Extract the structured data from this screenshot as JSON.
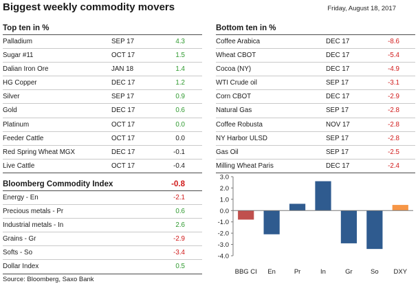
{
  "header": {
    "title": "Biggest weekly commodity movers",
    "date": "Friday, August 18, 2017"
  },
  "top": {
    "title": "Top ten in %",
    "rows": [
      {
        "name": "Palladium",
        "month": "SEP 17",
        "value": "4.3",
        "sign": "pos"
      },
      {
        "name": "Sugar #11",
        "month": "OCT 17",
        "value": "1.5",
        "sign": "pos"
      },
      {
        "name": "Dalian Iron Ore",
        "month": "JAN 18",
        "value": "1.4",
        "sign": "pos"
      },
      {
        "name": "HG Copper",
        "month": "DEC 17",
        "value": "1.2",
        "sign": "pos"
      },
      {
        "name": "Silver",
        "month": "SEP 17",
        "value": "0.9",
        "sign": "pos"
      },
      {
        "name": "Gold",
        "month": "DEC 17",
        "value": "0.6",
        "sign": "pos"
      },
      {
        "name": "Platinum",
        "month": "OCT 17",
        "value": "0.0",
        "sign": "pos"
      },
      {
        "name": "Feeder Cattle",
        "month": "OCT 17",
        "value": "0.0",
        "sign": "zero"
      },
      {
        "name": "Red Spring Wheat MGX",
        "month": "DEC 17",
        "value": "-0.1",
        "sign": "zero"
      },
      {
        "name": "Live Cattle",
        "month": "OCT 17",
        "value": "-0.4",
        "sign": "zero"
      }
    ]
  },
  "bottom": {
    "title": "Bottom ten in %",
    "rows": [
      {
        "name": "Coffee Arabica",
        "month": "DEC 17",
        "value": "-8.6",
        "sign": "neg"
      },
      {
        "name": "Wheat CBOT",
        "month": "DEC 17",
        "value": "-5.4",
        "sign": "neg"
      },
      {
        "name": "Cocoa (NY)",
        "month": "DEC 17",
        "value": "-4.9",
        "sign": "neg"
      },
      {
        "name": "WTI Crude oil",
        "month": "SEP 17",
        "value": "-3.1",
        "sign": "neg"
      },
      {
        "name": "Corn CBOT",
        "month": "DEC 17",
        "value": "-2.9",
        "sign": "neg"
      },
      {
        "name": "Natural Gas",
        "month": "SEP 17",
        "value": "-2.8",
        "sign": "neg"
      },
      {
        "name": "Coffee Robusta",
        "month": "NOV 17",
        "value": "-2.8",
        "sign": "neg"
      },
      {
        "name": "NY Harbor ULSD",
        "month": "SEP 17",
        "value": "-2.8",
        "sign": "neg"
      },
      {
        "name": "Gas Oil",
        "month": "SEP 17",
        "value": "-2.5",
        "sign": "neg"
      },
      {
        "name": "Milling Wheat Paris",
        "month": "DEC 17",
        "value": "-2.4",
        "sign": "neg"
      }
    ]
  },
  "index": {
    "title": "Bloomberg Commodity Index",
    "title_value": "-0.8",
    "rows": [
      {
        "name": "Energy - En",
        "value": "-2.1",
        "sign": "neg"
      },
      {
        "name": "Precious metals - Pr",
        "value": "0.6",
        "sign": "pos"
      },
      {
        "name": "Industrial metals - In",
        "value": "2.6",
        "sign": "pos"
      },
      {
        "name": "Grains - Gr",
        "value": "-2.9",
        "sign": "neg"
      },
      {
        "name": "Softs - So",
        "value": "-3.4",
        "sign": "neg"
      },
      {
        "name": "Dollar Index",
        "value": "0.5",
        "sign": "pos"
      }
    ]
  },
  "source": "Source: Bloomberg, Saxo Bank",
  "colors": {
    "positive": "#2f9a2f",
    "negative": "#d01818",
    "bbg_bar": "#c0504d",
    "sector_bar": "#2f5b8f",
    "dxy_bar": "#f79646"
  },
  "chart_data": {
    "type": "bar",
    "categories": [
      "BBG CI",
      "En",
      "Pr",
      "In",
      "Gr",
      "So",
      "DXY"
    ],
    "values": [
      -0.8,
      -2.1,
      0.6,
      2.6,
      -2.9,
      -3.4,
      0.5
    ],
    "bar_colors": [
      "#c0504d",
      "#2f5b8f",
      "#2f5b8f",
      "#2f5b8f",
      "#2f5b8f",
      "#2f5b8f",
      "#f79646"
    ],
    "ylim": [
      -4.0,
      3.0
    ],
    "yticks": [
      "3.0",
      "2.0",
      "1.0",
      "0.0",
      "-1.0",
      "-2.0",
      "-3.0",
      "-4.0"
    ],
    "title": "",
    "xlabel": "",
    "ylabel": "",
    "grid": false,
    "legend": "none"
  }
}
